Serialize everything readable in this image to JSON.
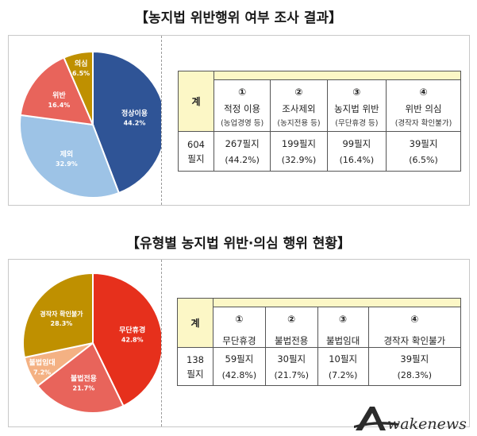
{
  "title1": "【농지법 위반행위 여부 조사 결과】",
  "title2": "【유형별 농지법 위반·의심 행위 현황】",
  "chart_data": [
    {
      "type": "pie",
      "title": "농지법 위반행위 여부 조사 결과",
      "slices": [
        {
          "label": "정상이용",
          "value": 44.2,
          "value_text": "44.2%",
          "color": "#2f5496"
        },
        {
          "label": "제외",
          "value": 32.9,
          "value_text": "32.9%",
          "color": "#9dc3e6"
        },
        {
          "label": "위반",
          "value": 16.4,
          "value_text": "16.4%",
          "color": "#e8645b"
        },
        {
          "label": "의심",
          "value": 6.5,
          "value_text": "6.5%",
          "color": "#bf9000"
        }
      ]
    },
    {
      "type": "pie",
      "title": "유형별 농지법 위반·의심 행위 현황",
      "slices": [
        {
          "label": "무단휴경",
          "value": 42.8,
          "value_text": "42.8%",
          "color": "#e6301c"
        },
        {
          "label": "불법전용",
          "value": 21.7,
          "value_text": "21.7%",
          "color": "#e8645b"
        },
        {
          "label": "불법임대",
          "value": 7.2,
          "value_text": "7.2%",
          "color": "#f4b183"
        },
        {
          "label": "경작자 확인불가",
          "value": 28.3,
          "value_text": "28.3%",
          "color": "#bf9000"
        }
      ]
    }
  ],
  "table1": {
    "total_header": "계",
    "total_value": "604",
    "total_unit": "필지",
    "columns": [
      {
        "num": "①",
        "label": "적정 이용",
        "sub": "(농업경영 등)",
        "count": "267필지",
        "pct": "(44.2%)"
      },
      {
        "num": "②",
        "label": "조사제외",
        "sub": "(농지전용 등)",
        "count": "199필지",
        "pct": "(32.9%)"
      },
      {
        "num": "③",
        "label": "농지법 위반",
        "sub": "(무단휴경 등)",
        "count": "99필지",
        "pct": "(16.4%)"
      },
      {
        "num": "④",
        "label": "위반 의심",
        "sub": "(경작자 확인불가)",
        "count": "39필지",
        "pct": "(6.5%)"
      }
    ]
  },
  "table2": {
    "total_header": "계",
    "total_value": "138",
    "total_unit": "필지",
    "columns": [
      {
        "num": "①",
        "label": "무단휴경",
        "count": "59필지",
        "pct": "(42.8%)"
      },
      {
        "num": "②",
        "label": "불법전용",
        "count": "30필지",
        "pct": "(21.7%)"
      },
      {
        "num": "③",
        "label": "불법임대",
        "count": "10필지",
        "pct": "(7.2%)"
      },
      {
        "num": "④",
        "label": "경작자 확인불가",
        "count": "39필지",
        "pct": "(28.3%)"
      }
    ]
  },
  "watermark": "wakenews"
}
